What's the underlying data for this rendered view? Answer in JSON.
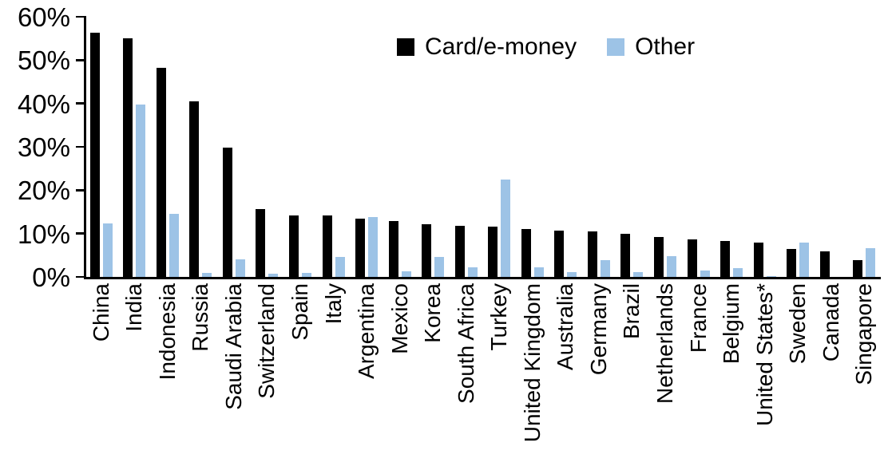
{
  "chart_data": {
    "type": "bar",
    "title": "",
    "xlabel": "",
    "ylabel": "",
    "ylim": [
      0,
      60
    ],
    "yticks": [
      "60%",
      "50%",
      "40%",
      "30%",
      "20%",
      "10%",
      "0%"
    ],
    "grid": false,
    "legend_position": "top-center",
    "axis_color": "#000000",
    "categories": [
      "China",
      "India",
      "Indonesia",
      "Russia",
      "Saudi Arabia",
      "Switzerland",
      "Spain",
      "Italy",
      "Argentina",
      "Mexico",
      "Korea",
      "South Africa",
      "Turkey",
      "United Kingdom",
      "Australia",
      "Germany",
      "Brazil",
      "Netherlands",
      "France",
      "Belgium",
      "United States*",
      "Sweden",
      "Canada",
      "Singapore"
    ],
    "series": [
      {
        "name": "Card/e-money",
        "color": "#000000",
        "values": [
          56.3,
          55.0,
          48.3,
          40.5,
          29.8,
          15.6,
          14.2,
          14.1,
          13.4,
          12.9,
          12.2,
          11.7,
          11.6,
          11.1,
          10.7,
          10.5,
          10.0,
          9.2,
          8.6,
          8.2,
          7.9,
          6.5,
          5.9,
          3.9
        ]
      },
      {
        "name": "Other",
        "color": "#9DC3E6",
        "values": [
          12.3,
          39.7,
          14.6,
          1.0,
          4.0,
          0.8,
          1.0,
          4.6,
          13.8,
          1.3,
          4.6,
          2.3,
          22.5,
          2.3,
          1.1,
          3.9,
          1.1,
          4.8,
          1.4,
          2.0,
          0.2,
          8.0,
          0.0,
          6.6
        ]
      }
    ]
  }
}
